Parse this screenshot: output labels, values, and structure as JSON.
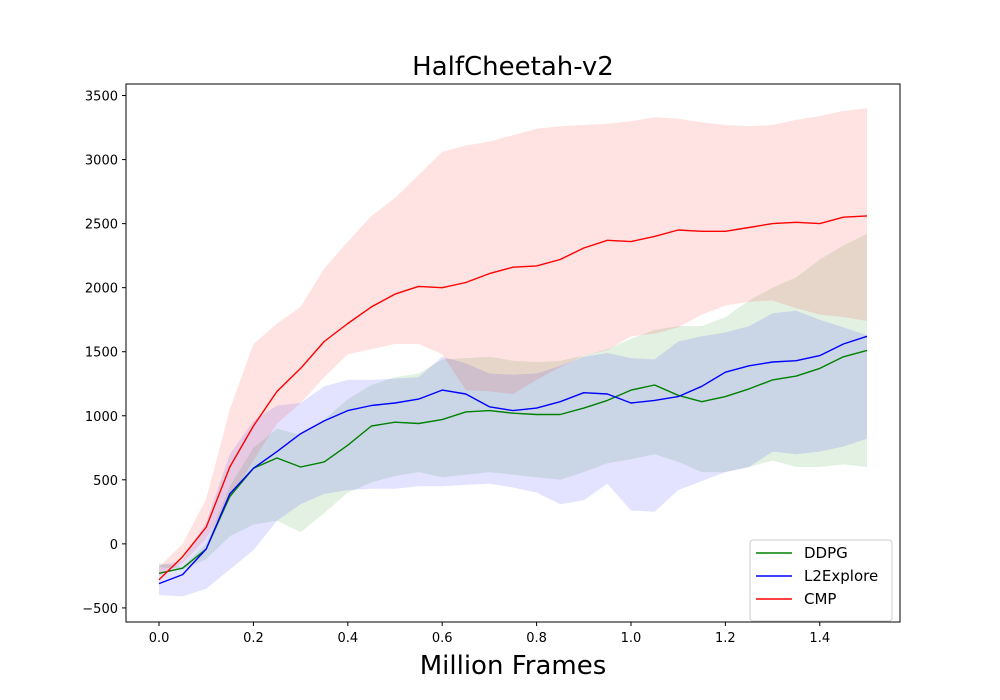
{
  "chart_data": {
    "type": "line",
    "title": "HalfCheetah-v2",
    "xlabel": "Million Frames",
    "ylabel": "",
    "xlim": [
      -0.07,
      1.57
    ],
    "ylim": [
      -610,
      3590
    ],
    "xticks": [
      0.0,
      0.2,
      0.4,
      0.6,
      0.8,
      1.0,
      1.2,
      1.4
    ],
    "xtick_labels": [
      "0.0",
      "0.2",
      "0.4",
      "0.6",
      "0.8",
      "1.0",
      "1.2",
      "1.4"
    ],
    "yticks": [
      -500,
      0,
      500,
      1000,
      1500,
      2000,
      2500,
      3000,
      3500
    ],
    "ytick_labels": [
      "−500",
      "0",
      "500",
      "1000",
      "1500",
      "2000",
      "2500",
      "3000",
      "3500"
    ],
    "legend_position": "bottom-right",
    "series": [
      {
        "name": "DDPG",
        "color": "#008000",
        "band_color": "#008000",
        "x": [
          0.0,
          0.05,
          0.1,
          0.15,
          0.2,
          0.25,
          0.3,
          0.35,
          0.4,
          0.45,
          0.5,
          0.55,
          0.6,
          0.65,
          0.7,
          0.75,
          0.8,
          0.85,
          0.9,
          0.95,
          1.0,
          1.05,
          1.1,
          1.15,
          1.2,
          1.25,
          1.3,
          1.35,
          1.4,
          1.45,
          1.5
        ],
        "mean": [
          -230,
          -190,
          -40,
          370,
          590,
          670,
          600,
          640,
          770,
          920,
          950,
          940,
          970,
          1030,
          1040,
          1020,
          1010,
          1010,
          1060,
          1120,
          1200,
          1240,
          1160,
          1110,
          1150,
          1210,
          1280,
          1310,
          1370,
          1460,
          1510
        ],
        "lower": [
          -180,
          -200,
          -120,
          60,
          150,
          180,
          90,
          240,
          400,
          480,
          530,
          560,
          520,
          540,
          560,
          540,
          520,
          500,
          560,
          630,
          660,
          700,
          640,
          560,
          560,
          600,
          650,
          600,
          600,
          620,
          600
        ],
        "upper": [
          -150,
          -180,
          0,
          450,
          750,
          900,
          850,
          970,
          1130,
          1240,
          1300,
          1330,
          1440,
          1450,
          1460,
          1430,
          1420,
          1430,
          1470,
          1520,
          1600,
          1670,
          1700,
          1700,
          1770,
          1900,
          2000,
          2080,
          2220,
          2330,
          2420
        ]
      },
      {
        "name": "L2Explore",
        "color": "#0000ff",
        "band_color": "#0000ff",
        "x": [
          0.0,
          0.05,
          0.1,
          0.15,
          0.2,
          0.25,
          0.3,
          0.35,
          0.4,
          0.45,
          0.5,
          0.55,
          0.6,
          0.65,
          0.7,
          0.75,
          0.8,
          0.85,
          0.9,
          0.95,
          1.0,
          1.05,
          1.1,
          1.15,
          1.2,
          1.25,
          1.3,
          1.35,
          1.4,
          1.45,
          1.5
        ],
        "mean": [
          -310,
          -240,
          -40,
          390,
          590,
          720,
          860,
          960,
          1040,
          1080,
          1100,
          1130,
          1200,
          1170,
          1070,
          1040,
          1060,
          1110,
          1180,
          1170,
          1100,
          1120,
          1150,
          1230,
          1340,
          1390,
          1420,
          1430,
          1470,
          1560,
          1620
        ],
        "lower": [
          -400,
          -410,
          -350,
          -200,
          -50,
          180,
          310,
          390,
          420,
          430,
          430,
          450,
          450,
          460,
          470,
          440,
          400,
          310,
          340,
          470,
          260,
          250,
          420,
          490,
          560,
          600,
          720,
          700,
          720,
          760,
          820
        ],
        "upper": [
          -170,
          -130,
          170,
          700,
          960,
          1080,
          1100,
          1230,
          1280,
          1280,
          1290,
          1300,
          1460,
          1410,
          1330,
          1320,
          1330,
          1390,
          1460,
          1490,
          1450,
          1440,
          1580,
          1620,
          1650,
          1700,
          1800,
          1820,
          1750,
          1690,
          1630
        ]
      },
      {
        "name": "CMP",
        "color": "#ff0000",
        "band_color": "#ff0000",
        "x": [
          0.0,
          0.05,
          0.1,
          0.15,
          0.2,
          0.25,
          0.3,
          0.35,
          0.4,
          0.45,
          0.5,
          0.55,
          0.6,
          0.65,
          0.7,
          0.75,
          0.8,
          0.85,
          0.9,
          0.95,
          1.0,
          1.05,
          1.1,
          1.15,
          1.2,
          1.25,
          1.3,
          1.35,
          1.4,
          1.45,
          1.5
        ],
        "mean": [
          -280,
          -100,
          130,
          600,
          920,
          1190,
          1370,
          1580,
          1720,
          1850,
          1950,
          2010,
          2000,
          2040,
          2110,
          2160,
          2170,
          2220,
          2310,
          2370,
          2360,
          2400,
          2450,
          2440,
          2440,
          2470,
          2500,
          2510,
          2500,
          2550,
          2560
        ],
        "lower": [
          -250,
          -150,
          40,
          350,
          650,
          940,
          1100,
          1300,
          1480,
          1520,
          1560,
          1560,
          1480,
          1200,
          1190,
          1170,
          1280,
          1380,
          1470,
          1510,
          1620,
          1640,
          1690,
          1790,
          1860,
          1890,
          1900,
          1840,
          1790,
          1770,
          1740
        ],
        "upper": [
          -180,
          0,
          350,
          1050,
          1560,
          1720,
          1850,
          2150,
          2360,
          2560,
          2700,
          2880,
          3060,
          3110,
          3140,
          3190,
          3240,
          3260,
          3270,
          3280,
          3300,
          3330,
          3320,
          3290,
          3270,
          3260,
          3270,
          3310,
          3340,
          3380,
          3400
        ]
      }
    ]
  }
}
